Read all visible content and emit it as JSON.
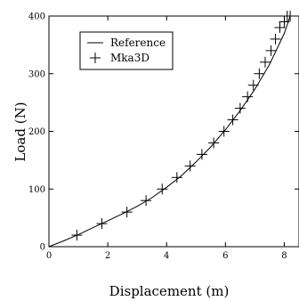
{
  "chart_data": {
    "type": "line",
    "title": "",
    "xlabel": "Displacement (m)",
    "ylabel": "Load (N)",
    "xlim": [
      0,
      8.5
    ],
    "ylim": [
      0,
      400
    ],
    "x_ticks": [
      0,
      2,
      4,
      6,
      8
    ],
    "y_ticks": [
      0,
      100,
      200,
      300,
      400
    ],
    "grid": false,
    "legend_position": "top-left",
    "series": [
      {
        "name": "Reference",
        "style": "line",
        "color": "#000000",
        "x": [
          0,
          0.5,
          1.0,
          1.5,
          2.0,
          2.5,
          3.0,
          3.5,
          4.0,
          4.5,
          5.0,
          5.5,
          6.0,
          6.5,
          7.0,
          7.5,
          8.0,
          8.2
        ],
        "y": [
          0,
          10,
          21,
          33,
          45,
          57,
          70,
          85,
          103,
          123,
          147,
          173,
          203,
          236,
          273,
          316,
          370,
          400
        ]
      },
      {
        "name": "Mka3D",
        "style": "markers",
        "marker": "plus",
        "color": "#000000",
        "x": [
          0.95,
          1.8,
          2.65,
          3.3,
          3.85,
          4.35,
          4.8,
          5.2,
          5.6,
          5.95,
          6.25,
          6.5,
          6.75,
          6.95,
          7.15,
          7.35,
          7.55,
          7.7,
          7.85,
          8.0,
          8.1,
          8.2
        ],
        "y": [
          20,
          40,
          60,
          80,
          100,
          120,
          140,
          160,
          180,
          200,
          220,
          240,
          260,
          280,
          300,
          320,
          340,
          360,
          380,
          390,
          400,
          400
        ]
      }
    ]
  }
}
